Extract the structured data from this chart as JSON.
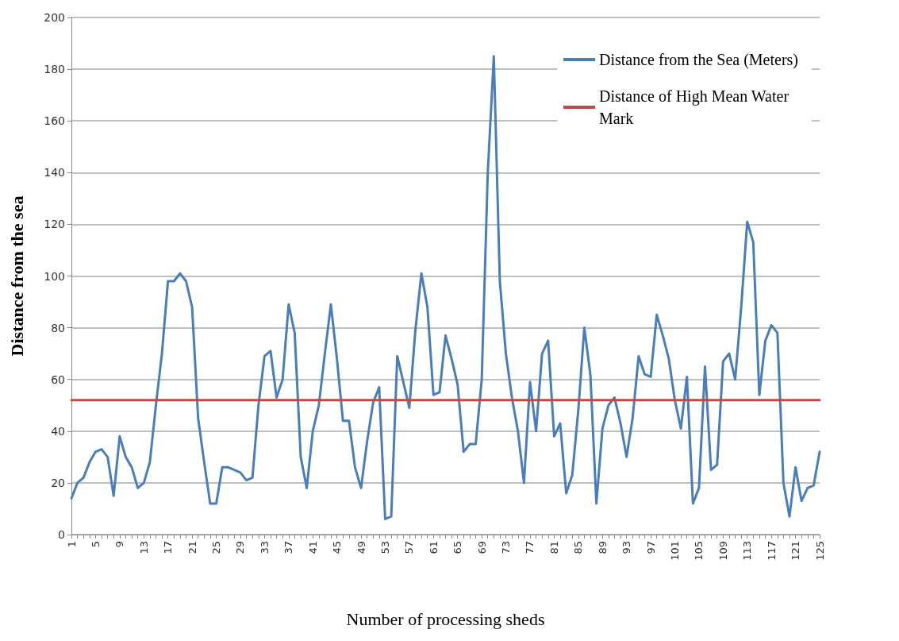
{
  "chart_data": {
    "type": "line",
    "xlabel": "Number of processing sheds",
    "ylabel": "Distance from the sea",
    "categories": [
      "1",
      null,
      null,
      null,
      "5",
      null,
      null,
      null,
      "9",
      null,
      null,
      null,
      "13",
      null,
      null,
      null,
      "17",
      null,
      null,
      null,
      "21",
      null,
      null,
      null,
      "25",
      null,
      null,
      null,
      "29",
      null,
      null,
      null,
      "33",
      null,
      null,
      null,
      "37",
      null,
      null,
      null,
      "41",
      null,
      null,
      null,
      "45",
      null,
      null,
      null,
      "49",
      null,
      null,
      null,
      "53",
      null,
      null,
      null,
      "57",
      null,
      null,
      null,
      "61",
      null,
      null,
      null,
      "65",
      null,
      null,
      null,
      "69",
      null,
      null,
      null,
      "73",
      null,
      null,
      null,
      "77",
      null,
      null,
      null,
      "81",
      null,
      null,
      null,
      "85",
      null,
      null,
      null,
      "89",
      null,
      null,
      null,
      "93",
      null,
      null,
      null,
      "97",
      null,
      null,
      null,
      "101",
      null,
      null,
      null,
      "105",
      null,
      null,
      null,
      "109",
      null,
      null,
      null,
      "113",
      null,
      null,
      null,
      "117",
      null,
      null,
      null,
      "121",
      null,
      null,
      null,
      "125"
    ],
    "series": [
      {
        "name": "Distance from the Sea (Meters)",
        "color": "#4a7ebb",
        "values": [
          14,
          20,
          22,
          28,
          32,
          33,
          30,
          15,
          38,
          30,
          26,
          18,
          20,
          28,
          50,
          70,
          98,
          98,
          101,
          98,
          88,
          45,
          28,
          12,
          12,
          26,
          26,
          25,
          24,
          21,
          22,
          50,
          69,
          71,
          53,
          60,
          89,
          78,
          30,
          18,
          40,
          50,
          70,
          89,
          68,
          44,
          44,
          26,
          18,
          36,
          51,
          57,
          6,
          7,
          69,
          59,
          49,
          79,
          101,
          88,
          54,
          55,
          77,
          68,
          58,
          32,
          35,
          35,
          60,
          140,
          185,
          98,
          70,
          53,
          40,
          20,
          59,
          40,
          70,
          75,
          38,
          43,
          16,
          23,
          48,
          80,
          62,
          12,
          41,
          50,
          53,
          43,
          30,
          45,
          69,
          62,
          61,
          85,
          77,
          68,
          52,
          41,
          61,
          12,
          18,
          65,
          25,
          27,
          67,
          70,
          60,
          88,
          121,
          113,
          54,
          75,
          81,
          78,
          20,
          7,
          26,
          13,
          18,
          19,
          32
        ]
      },
      {
        "name": "Distance of High Mean Water Mark",
        "color": "#be4b48",
        "values": [
          52,
          52,
          52,
          52,
          52,
          52,
          52,
          52,
          52,
          52,
          52,
          52,
          52,
          52,
          52,
          52,
          52,
          52,
          52,
          52,
          52,
          52,
          52,
          52,
          52,
          52,
          52,
          52,
          52,
          52,
          52,
          52,
          52,
          52,
          52,
          52,
          52,
          52,
          52,
          52,
          52,
          52,
          52,
          52,
          52,
          52,
          52,
          52,
          52,
          52,
          52,
          52,
          52,
          52,
          52,
          52,
          52,
          52,
          52,
          52,
          52,
          52,
          52,
          52,
          52,
          52,
          52,
          52,
          52,
          52,
          52,
          52,
          52,
          52,
          52,
          52,
          52,
          52,
          52,
          52,
          52,
          52,
          52,
          52,
          52,
          52,
          52,
          52,
          52,
          52,
          52,
          52,
          52,
          52,
          52,
          52,
          52,
          52,
          52,
          52,
          52,
          52,
          52,
          52,
          52,
          52,
          52,
          52,
          52,
          52,
          52,
          52,
          52,
          52,
          52,
          52,
          52,
          52,
          52,
          52,
          52,
          52,
          52,
          52,
          52
        ]
      }
    ],
    "ylim": [
      0,
      200
    ],
    "yticks": [
      0,
      20,
      40,
      60,
      80,
      100,
      120,
      140,
      160,
      180,
      200
    ],
    "grid": "y",
    "legend": "top right",
    "marker": "none",
    "line_style": "solid"
  }
}
